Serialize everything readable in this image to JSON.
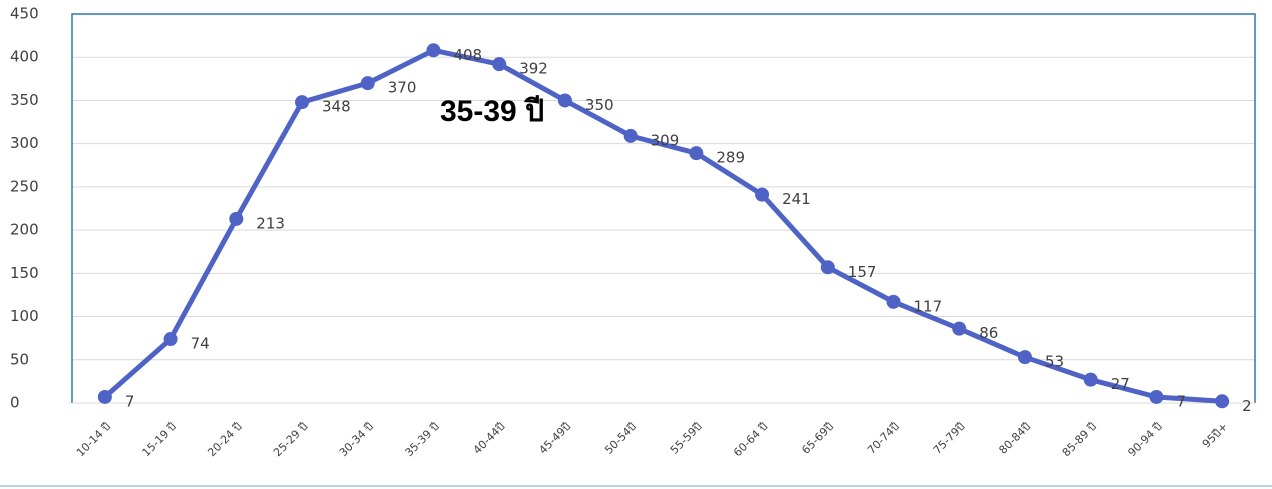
{
  "chart_data": {
    "type": "line",
    "annotation": "35-39 ปี",
    "categories": [
      "10-14 ปี",
      "15-19 ปี",
      "20-24 ปี",
      "25-29 ปี",
      "30-34 ปี",
      "35-39 ปี",
      "40-44ปี",
      "45-49ปี",
      "50-54ปี",
      "55-59ปี",
      "60-64 ปี",
      "65-69ปี",
      "70-74ปี",
      "75-79ปี",
      "80-84ปี",
      "85-89 ปี",
      "90-94 ปี",
      "95ปี+"
    ],
    "series": [
      {
        "color": "#4f62c6",
        "values": [
          7,
          74,
          213,
          348,
          370,
          408,
          392,
          350,
          309,
          289,
          241,
          157,
          117,
          86,
          53,
          27,
          7,
          2
        ]
      }
    ],
    "ylim": [
      0,
      450
    ],
    "yticks": [
      0,
      50,
      100,
      150,
      200,
      250,
      300,
      350,
      400,
      450
    ],
    "grid": true
  }
}
